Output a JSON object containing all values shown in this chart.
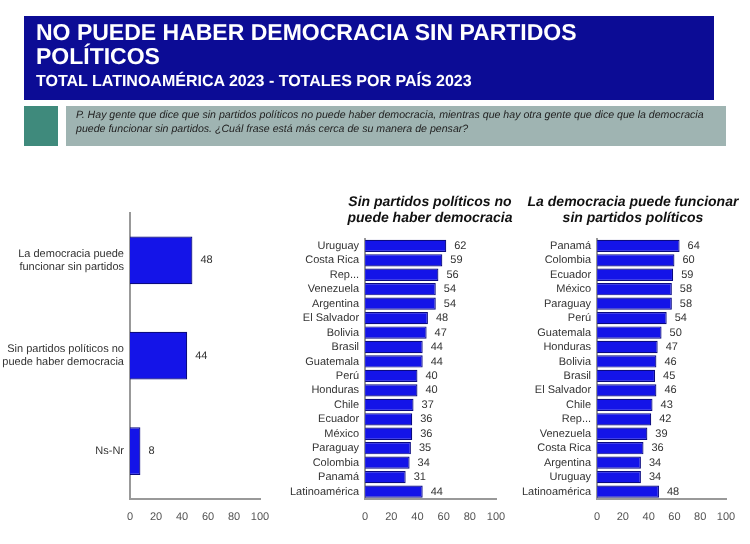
{
  "chart_data": [
    {
      "type": "bar",
      "title": "NO PUEDE HABER DEMOCRACIA SIN PARTIDOS POLÍTICOS",
      "subtitle": "TOTAL LATINOAMÉRICA 2023 - TOTALES POR PAÍS 2023",
      "annotations": [
        "P. Hay gente que dice que sin partidos políticos no puede haber democracia, mientras que hay otra gente que dice que la democracia puede funcionar sin partidos. ¿Cuál frase está más cerca de su manera de pensar?"
      ],
      "orientation": "horizontal",
      "categories": [
        "La democracia puede funcionar sin partidos",
        "Sin partidos políticos no puede haber democracia",
        "Ns-Nr"
      ],
      "values": [
        48,
        44,
        8
      ],
      "color": "#1414e8",
      "xlim": [
        0,
        100
      ],
      "xticks": [
        0,
        20,
        40,
        60,
        80,
        100
      ],
      "data_labels": true,
      "grid": false,
      "legend": false
    },
    {
      "type": "bar",
      "title": "Sin partidos políticos no puede haber democracia",
      "orientation": "horizontal",
      "categories": [
        "Uruguay",
        "Costa Rica",
        "Rep...",
        "Venezuela",
        "Argentina",
        "El Salvador",
        "Bolivia",
        "Brasil",
        "Guatemala",
        "Perú",
        "Honduras",
        "Chile",
        "Ecuador",
        "México",
        "Paraguay",
        "Colombia",
        "Panamá",
        "Latinoamérica"
      ],
      "values": [
        62,
        59,
        56,
        54,
        54,
        48,
        47,
        44,
        44,
        40,
        40,
        37,
        36,
        36,
        35,
        34,
        31,
        44
      ],
      "color": "#1414e8",
      "xlim": [
        0,
        100
      ],
      "xticks": [
        0,
        20,
        40,
        60,
        80,
        100
      ],
      "data_labels": true,
      "grid": false,
      "legend": false
    },
    {
      "type": "bar",
      "title": "La democracia puede funcionar sin partidos políticos",
      "orientation": "horizontal",
      "categories": [
        "Panamá",
        "Colombia",
        "Ecuador",
        "México",
        "Paraguay",
        "Perú",
        "Guatemala",
        "Honduras",
        "Bolivia",
        "Brasil",
        "El Salvador",
        "Chile",
        "Rep...",
        "Venezuela",
        "Costa Rica",
        "Argentina",
        "Uruguay",
        "Latinoamérica"
      ],
      "values": [
        64,
        60,
        59,
        58,
        58,
        54,
        50,
        47,
        46,
        45,
        46,
        43,
        42,
        39,
        36,
        34,
        34,
        48
      ],
      "color": "#1414e8",
      "xlim": [
        0,
        100
      ],
      "xticks": [
        0,
        20,
        40,
        60,
        80,
        100
      ],
      "data_labels": true,
      "grid": false,
      "legend": false
    }
  ]
}
